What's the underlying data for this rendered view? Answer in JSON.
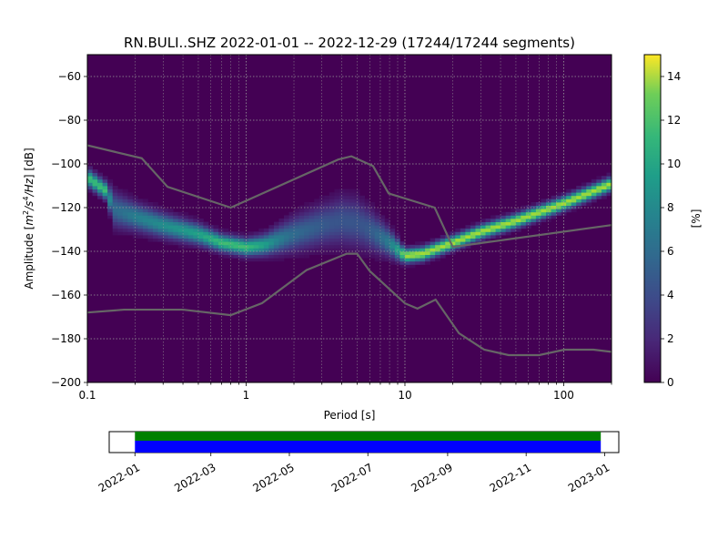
{
  "title": "RN.BULI..SHZ   2022-01-01 -- 2022-12-29  (17244/17244 segments)",
  "chart_data": [
    {
      "type": "heatmap",
      "description": "Probabilistic power spectral density (PPSD) histogram",
      "xlabel": "Period [s]",
      "ylabel_parts": [
        "Amplitude [",
        "m",
        "2",
        "/",
        "s",
        "4",
        "/",
        "Hz",
        "] [dB]"
      ],
      "xscale": "log",
      "xlim": [
        0.1,
        200
      ],
      "ylim": [
        -200,
        -50
      ],
      "x_ticks": [
        {
          "value": 0.1,
          "label": "0.1"
        },
        {
          "value": 1,
          "label": "1"
        },
        {
          "value": 10,
          "label": "10"
        },
        {
          "value": 100,
          "label": "100"
        }
      ],
      "y_ticks": [
        -60,
        -80,
        -100,
        -120,
        -140,
        -160,
        -180,
        -200
      ],
      "y_tick_labels": [
        "−60",
        "−80",
        "−100",
        "−120",
        "−140",
        "−160",
        "−180",
        "−200"
      ],
      "grid": true,
      "colormap": "viridis",
      "background_color": "#440154",
      "mode_curve": [
        {
          "period": 0.1,
          "db": -106,
          "spread": 2.5
        },
        {
          "period": 0.13,
          "db": -112,
          "spread": 2.5
        },
        {
          "period": 0.15,
          "db": -121,
          "spread": 5
        },
        {
          "period": 0.2,
          "db": -124,
          "spread": 4
        },
        {
          "period": 0.3,
          "db": -128,
          "spread": 3.5
        },
        {
          "period": 0.5,
          "db": -132,
          "spread": 3
        },
        {
          "period": 0.7,
          "db": -136,
          "spread": 2.5
        },
        {
          "period": 1,
          "db": -138,
          "spread": 2.5
        },
        {
          "period": 1.3,
          "db": -137,
          "spread": 3
        },
        {
          "period": 2,
          "db": -132,
          "spread": 5
        },
        {
          "period": 3,
          "db": -128,
          "spread": 6
        },
        {
          "period": 4,
          "db": -126,
          "spread": 7
        },
        {
          "period": 5,
          "db": -127,
          "spread": 7
        },
        {
          "period": 6,
          "db": -130,
          "spread": 6
        },
        {
          "period": 8,
          "db": -136,
          "spread": 4
        },
        {
          "period": 10,
          "db": -142,
          "spread": 2
        },
        {
          "period": 13,
          "db": -141,
          "spread": 2
        },
        {
          "period": 20,
          "db": -136,
          "spread": 2
        },
        {
          "period": 30,
          "db": -131,
          "spread": 2
        },
        {
          "period": 50,
          "db": -126,
          "spread": 2
        },
        {
          "period": 100,
          "db": -118,
          "spread": 2
        },
        {
          "period": 200,
          "db": -109,
          "spread": 2
        }
      ],
      "noise_models": [
        {
          "name": "NHNM",
          "color": "#666666",
          "points": [
            [
              0.1,
              -91.5
            ],
            [
              0.22,
              -97.4
            ],
            [
              0.32,
              -110.5
            ],
            [
              0.8,
              -120
            ],
            [
              3.8,
              -98
            ],
            [
              4.6,
              -96.5
            ],
            [
              6.3,
              -101
            ],
            [
              7.9,
              -113.5
            ],
            [
              15.4,
              -120
            ],
            [
              20,
              -138
            ],
            [
              200,
              -128
            ]
          ]
        },
        {
          "name": "NLNM",
          "color": "#666666",
          "points": [
            [
              0.1,
              -168
            ],
            [
              0.17,
              -166.7
            ],
            [
              0.4,
              -166.7
            ],
            [
              0.8,
              -169.2
            ],
            [
              1.26,
              -163.7
            ],
            [
              2.4,
              -148.6
            ],
            [
              4.3,
              -141.1
            ],
            [
              5.0,
              -141.1
            ],
            [
              6.0,
              -149
            ],
            [
              10,
              -163.8
            ],
            [
              12,
              -166.2
            ],
            [
              15.6,
              -162.1
            ],
            [
              21.9,
              -177.5
            ],
            [
              31.6,
              -185
            ],
            [
              45,
              -187.5
            ],
            [
              70,
              -187.5
            ],
            [
              101,
              -185
            ],
            [
              154,
              -185
            ],
            [
              200,
              -186
            ]
          ]
        }
      ],
      "colorbar": {
        "label": "[%]",
        "range": [
          0,
          15
        ],
        "ticks": [
          0,
          2,
          4,
          6,
          8,
          10,
          12,
          14
        ]
      }
    },
    {
      "type": "timeline",
      "description": "Data coverage",
      "range": [
        "2021-12-12",
        "2023-01-12"
      ],
      "coverage": {
        "start": "2022-01-01",
        "end": "2022-12-29",
        "colors": [
          "#008000",
          "#0000ff"
        ]
      },
      "ticks": [
        "2022-01",
        "2022-03",
        "2022-05",
        "2022-07",
        "2022-09",
        "2022-11",
        "2023-01"
      ]
    }
  ]
}
